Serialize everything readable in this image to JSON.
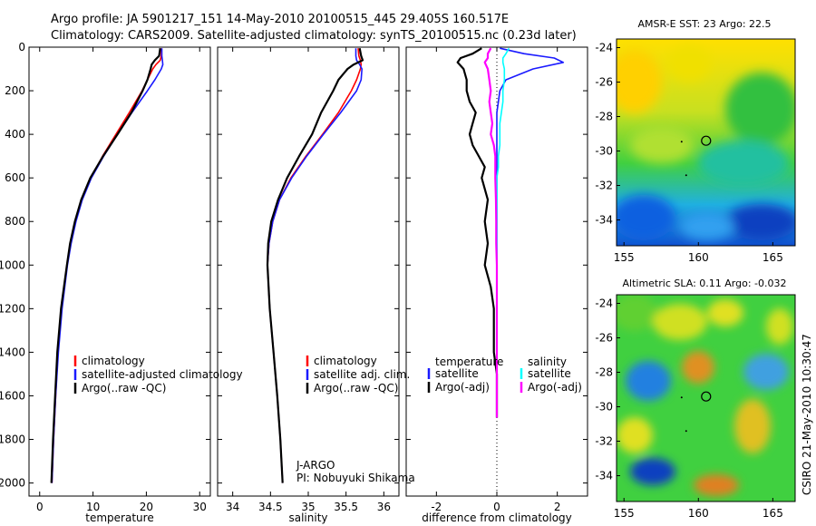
{
  "header": {
    "line1": "Argo profile: JA 5901217_151 14-May-2010 20100515_445 29.405S 160.517E",
    "line2": "Climatology: CARS2009. Satellite-adjusted climatology: synTS_20100515.nc (0.23d later)"
  },
  "side_text": "CSIRO 21-May-2010 10:30:47",
  "colors": {
    "red": "#ff0000",
    "blue": "#1a1aff",
    "black": "#000000",
    "cyan": "#00ffff",
    "magenta": "#ff00ff"
  },
  "chart_data": [
    {
      "type": "line",
      "xlabel": "temperature",
      "xlim": [
        -2,
        32
      ],
      "xticks": [
        "0",
        "10",
        "20",
        "30"
      ],
      "ylim": [
        0,
        2060
      ],
      "yticks": [
        "0",
        "200",
        "400",
        "600",
        "800",
        "1000",
        "1200",
        "1400",
        "1600",
        "1800",
        "2000"
      ],
      "depth": [
        5,
        40,
        60,
        80,
        100,
        150,
        200,
        300,
        400,
        500,
        600,
        700,
        800,
        900,
        1000,
        1200,
        1400,
        1600,
        1800,
        2000
      ],
      "series": [
        {
          "name": "climatology",
          "color": "red",
          "values": [
            22.8,
            22.8,
            22.6,
            21.8,
            21.2,
            20.2,
            19.2,
            16.8,
            14.3,
            11.8,
            9.6,
            7.9,
            6.7,
            5.8,
            5.1,
            4.1,
            3.4,
            3.0,
            2.6,
            2.3
          ]
        },
        {
          "name": "satellite-adjusted climatology",
          "color": "blue",
          "values": [
            22.9,
            22.9,
            23.0,
            23.1,
            22.8,
            21.6,
            20.2,
            17.3,
            14.6,
            12.0,
            9.7,
            8.0,
            6.8,
            5.9,
            5.2,
            4.2,
            3.5,
            3.0,
            2.6,
            2.3
          ]
        },
        {
          "name": "Argo(..raw -QC)",
          "color": "black",
          "values": [
            22.6,
            22.4,
            21.6,
            21.0,
            20.8,
            20.2,
            19.3,
            17.2,
            14.6,
            11.9,
            9.5,
            7.8,
            6.6,
            5.7,
            5.1,
            4.0,
            3.3,
            2.9,
            2.5,
            2.2
          ]
        }
      ],
      "legend": {
        "placement": "lower-right",
        "entries": [
          "climatology",
          "satellite-adjusted climatology",
          "Argo(..raw -QC)"
        ]
      }
    },
    {
      "type": "line",
      "xlabel": "salinity",
      "xlim": [
        33.8,
        36.2
      ],
      "xticks": [
        "34",
        "34.5",
        "35",
        "35.5",
        "36"
      ],
      "ylim": [
        0,
        2060
      ],
      "depth": [
        5,
        40,
        60,
        80,
        100,
        150,
        200,
        300,
        400,
        500,
        600,
        700,
        800,
        900,
        1000,
        1200,
        1400,
        1600,
        1800,
        2000
      ],
      "series": [
        {
          "name": "climatology",
          "color": "red",
          "values": [
            35.66,
            35.67,
            35.69,
            35.7,
            35.69,
            35.64,
            35.57,
            35.4,
            35.19,
            34.97,
            34.77,
            34.62,
            34.53,
            34.48,
            34.46,
            34.49,
            34.54,
            34.59,
            34.63,
            34.66
          ]
        },
        {
          "name": "satellite adj. clim.",
          "color": "blue",
          "values": [
            35.63,
            35.63,
            35.64,
            35.68,
            35.71,
            35.7,
            35.64,
            35.43,
            35.2,
            34.98,
            34.78,
            34.62,
            34.53,
            34.48,
            34.46,
            34.49,
            34.54,
            34.59,
            34.63,
            34.66
          ]
        },
        {
          "name": "Argo(..raw -QC)",
          "color": "black",
          "values": [
            35.68,
            35.7,
            35.72,
            35.6,
            35.52,
            35.4,
            35.33,
            35.17,
            35.05,
            34.88,
            34.72,
            34.6,
            34.51,
            34.47,
            34.46,
            34.49,
            34.54,
            34.59,
            34.63,
            34.66
          ]
        }
      ],
      "legend": {
        "placement": "lower-right",
        "entries": [
          "climatology",
          "satellite adj. clim.",
          "Argo(..raw -QC)"
        ]
      },
      "annotations": [
        "J-ARGO",
        "PI: Nobuyuki Shikama"
      ]
    },
    {
      "type": "line",
      "xlabel": "difference from climatology",
      "xlim": [
        -3,
        3
      ],
      "xticks": [
        "-2",
        "0",
        "2"
      ],
      "ylim": [
        0,
        2060
      ],
      "zero_line": "dotted",
      "depth": [
        5,
        30,
        50,
        70,
        100,
        150,
        200,
        250,
        300,
        350,
        400,
        450,
        500,
        550,
        600,
        700,
        800,
        900,
        1000,
        1100,
        1200,
        1300,
        1400,
        1500,
        1600,
        1700
      ],
      "series": [
        {
          "name": "temperature satellite",
          "color": "blue",
          "values": [
            0.1,
            0.9,
            1.9,
            2.2,
            1.2,
            0.3,
            0.1,
            0.05,
            0.0,
            0.0,
            0.0,
            0.0,
            0.0,
            0.0,
            0.0,
            0.0,
            0.0,
            0.0,
            0.0,
            0.0,
            0.0,
            0.0,
            0.0,
            0.0,
            0.0,
            0.0
          ]
        },
        {
          "name": "temperature Argo(-adj)",
          "color": "black",
          "values": [
            -0.5,
            -0.8,
            -1.2,
            -1.3,
            -1.1,
            -1.0,
            -1.0,
            -0.9,
            -0.7,
            -0.8,
            -0.9,
            -0.8,
            -0.6,
            -0.4,
            -0.5,
            -0.3,
            -0.4,
            -0.3,
            -0.4,
            -0.2,
            -0.1,
            -0.1,
            -0.1,
            0.0,
            0.0,
            0.0
          ]
        },
        {
          "name": "salinity satellite",
          "color": "cyan",
          "values": [
            0.4,
            0.3,
            0.2,
            0.2,
            0.25,
            0.25,
            0.2,
            0.2,
            0.15,
            0.1,
            0.1,
            0.1,
            0.05,
            0.05,
            0.0,
            0.0,
            0.0,
            0.0,
            0.0,
            0.0,
            0.0,
            0.0,
            0.0,
            0.0,
            0.0,
            0.0
          ]
        },
        {
          "name": "salinity Argo(-adj)",
          "color": "magenta",
          "values": [
            -0.2,
            -0.3,
            -0.3,
            -0.4,
            -0.3,
            -0.25,
            -0.2,
            -0.25,
            -0.2,
            -0.15,
            -0.2,
            -0.1,
            -0.05,
            -0.05,
            -0.05,
            -0.03,
            -0.02,
            -0.02,
            0.0,
            0.0,
            0.0,
            0.0,
            0.0,
            0.0,
            0.0,
            0.0
          ]
        }
      ],
      "legend": {
        "placement": "lower",
        "headers": [
          "temperature",
          "salinity"
        ],
        "entries": [
          "satellite",
          "Argo(-adj)",
          "satellite",
          "Argo(-adj)"
        ]
      }
    },
    {
      "type": "heatmap",
      "title": "AMSR-E SST: 23 Argo: 22.5",
      "xticks": [
        "155",
        "160",
        "165"
      ],
      "yticks": [
        "-24",
        "-26",
        "-28",
        "-30",
        "-32",
        "-34"
      ],
      "xlim": [
        154.5,
        166.5
      ],
      "ylim": [
        -35.5,
        -23.5
      ],
      "float_position": [
        160.517,
        -29.405
      ]
    },
    {
      "type": "heatmap",
      "title": "Altimetric SLA: 0.11 Argo: -0.032",
      "xticks": [
        "155",
        "160",
        "165"
      ],
      "yticks": [
        "-24",
        "-26",
        "-28",
        "-30",
        "-32",
        "-34"
      ],
      "xlim": [
        154.5,
        166.5
      ],
      "ylim": [
        -35.5,
        -23.5
      ],
      "float_position": [
        160.517,
        -29.405
      ]
    }
  ]
}
